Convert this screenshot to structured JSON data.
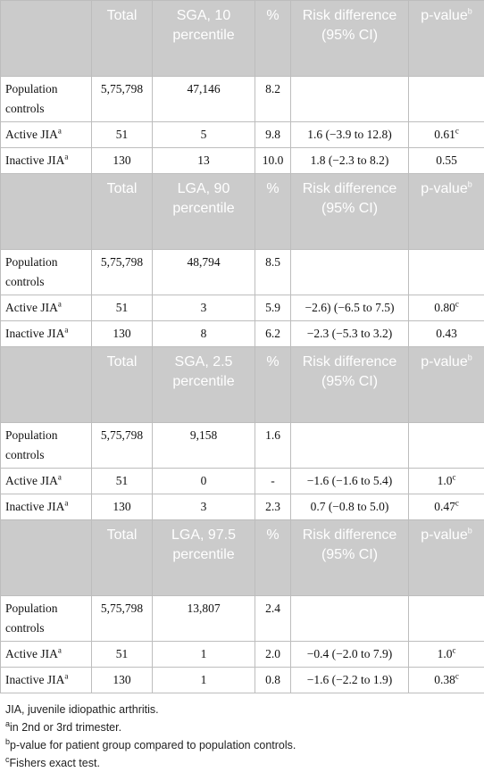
{
  "sections": [
    {
      "header": [
        "Total",
        "SGA, 10 percentile",
        "%",
        "Risk difference (95% CI)",
        {
          "text": "p-value",
          "sup": "b"
        }
      ],
      "rows": [
        [
          "Population controls",
          "5,75,798",
          "47,146",
          "8.2"
        ],
        [
          {
            "text": "Active JIA",
            "sup": "a"
          },
          "51",
          "5",
          "9.8",
          "1.6 (−3.9 to 12.8)",
          {
            "text": "0.61",
            "sup": "c"
          }
        ],
        [
          {
            "text": "Inactive JIA",
            "sup": "a"
          },
          "130",
          "13",
          "10.0",
          "1.8 (−2.3 to 8.2)",
          "0.55"
        ]
      ]
    },
    {
      "header": [
        "Total",
        "LGA, 90 percentile",
        "%",
        "Risk difference (95% CI)",
        {
          "text": "p-value",
          "sup": "b"
        }
      ],
      "rows": [
        [
          "Population controls",
          "5,75,798",
          "48,794",
          "8.5"
        ],
        [
          {
            "text": "Active JIA",
            "sup": "a"
          },
          "51",
          "3",
          "5.9",
          "−2.6) (−6.5 to 7.5)",
          {
            "text": "0.80",
            "sup": "c"
          }
        ],
        [
          {
            "text": "Inactive JIA",
            "sup": "a"
          },
          "130",
          "8",
          "6.2",
          "−2.3 (−5.3 to 3.2)",
          "0.43"
        ]
      ]
    },
    {
      "header": [
        "Total",
        "SGA, 2.5 percentile",
        "%",
        "Risk difference (95% CI)",
        {
          "text": "p-value",
          "sup": "b"
        }
      ],
      "rows": [
        [
          "Population controls",
          "5,75,798",
          "9,158",
          "1.6"
        ],
        [
          {
            "text": "Active JIA",
            "sup": "a"
          },
          "51",
          "0",
          "-",
          "−1.6 (−1.6 to 5.4)",
          {
            "text": "1.0",
            "sup": "c"
          }
        ],
        [
          {
            "text": "Inactive JIA",
            "sup": "a"
          },
          "130",
          "3",
          "2.3",
          "0.7 (−0.8 to 5.0)",
          {
            "text": "0.47",
            "sup": "c"
          }
        ]
      ]
    },
    {
      "header": [
        "Total",
        "LGA, 97.5 percentile",
        "%",
        "Risk difference (95% CI)",
        {
          "text": "p-value",
          "sup": "b"
        }
      ],
      "rows": [
        [
          "Population controls",
          "5,75,798",
          "13,807",
          "2.4"
        ],
        [
          {
            "text": "Active JIA",
            "sup": "a"
          },
          "51",
          "1",
          "2.0",
          "−0.4 (−2.0 to 7.9)",
          {
            "text": "1.0",
            "sup": "c"
          }
        ],
        [
          {
            "text": "Inactive JIA",
            "sup": "a"
          },
          "130",
          "1",
          "0.8",
          "−1.6 (−2.2 to 1.9)",
          {
            "text": "0.38",
            "sup": "c"
          }
        ]
      ]
    }
  ],
  "footnotes": [
    {
      "text": "JIA, juvenile idiopathic arthritis."
    },
    {
      "sup": "a",
      "text": "in 2nd or 3rd trimester."
    },
    {
      "sup": "b",
      "text": "p-value for patient group compared to population controls."
    },
    {
      "sup": "c",
      "text": "Fishers exact test."
    }
  ]
}
